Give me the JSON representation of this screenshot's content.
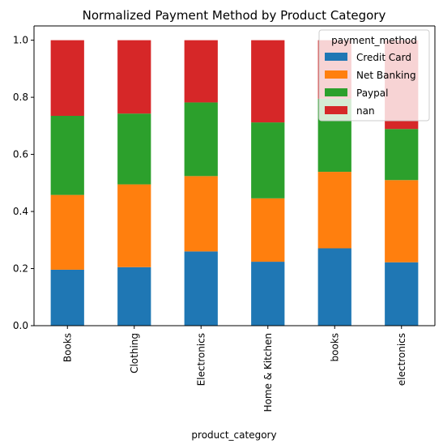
{
  "chart_data": {
    "type": "bar",
    "stacked": true,
    "title": "Normalized Payment Method by Product Category",
    "xlabel": "product_category",
    "ylabel": "",
    "ylim": [
      0,
      1.05
    ],
    "yticks": [
      0.0,
      0.2,
      0.4,
      0.6,
      0.8,
      1.0
    ],
    "ytick_labels": [
      "0.0",
      "0.2",
      "0.4",
      "0.6",
      "0.8",
      "1.0"
    ],
    "grid": false,
    "categories": [
      "Books",
      "Clothing",
      "Electronics",
      "Home & Kitchen",
      "books",
      "electronics"
    ],
    "legend": {
      "title": "payment_method",
      "placement": "top-right"
    },
    "series": [
      {
        "name": "Credit Card",
        "color": "#1f77b4",
        "values": [
          0.196,
          0.205,
          0.26,
          0.224,
          0.271,
          0.222
        ]
      },
      {
        "name": "Net Banking",
        "color": "#ff7f0e",
        "values": [
          0.262,
          0.29,
          0.264,
          0.222,
          0.268,
          0.288
        ]
      },
      {
        "name": "Paypal",
        "color": "#2ca02c",
        "values": [
          0.277,
          0.248,
          0.258,
          0.266,
          0.256,
          0.179
        ]
      },
      {
        "name": "nan",
        "color": "#d62728",
        "values": [
          0.265,
          0.257,
          0.218,
          0.288,
          0.205,
          0.311
        ]
      }
    ]
  }
}
